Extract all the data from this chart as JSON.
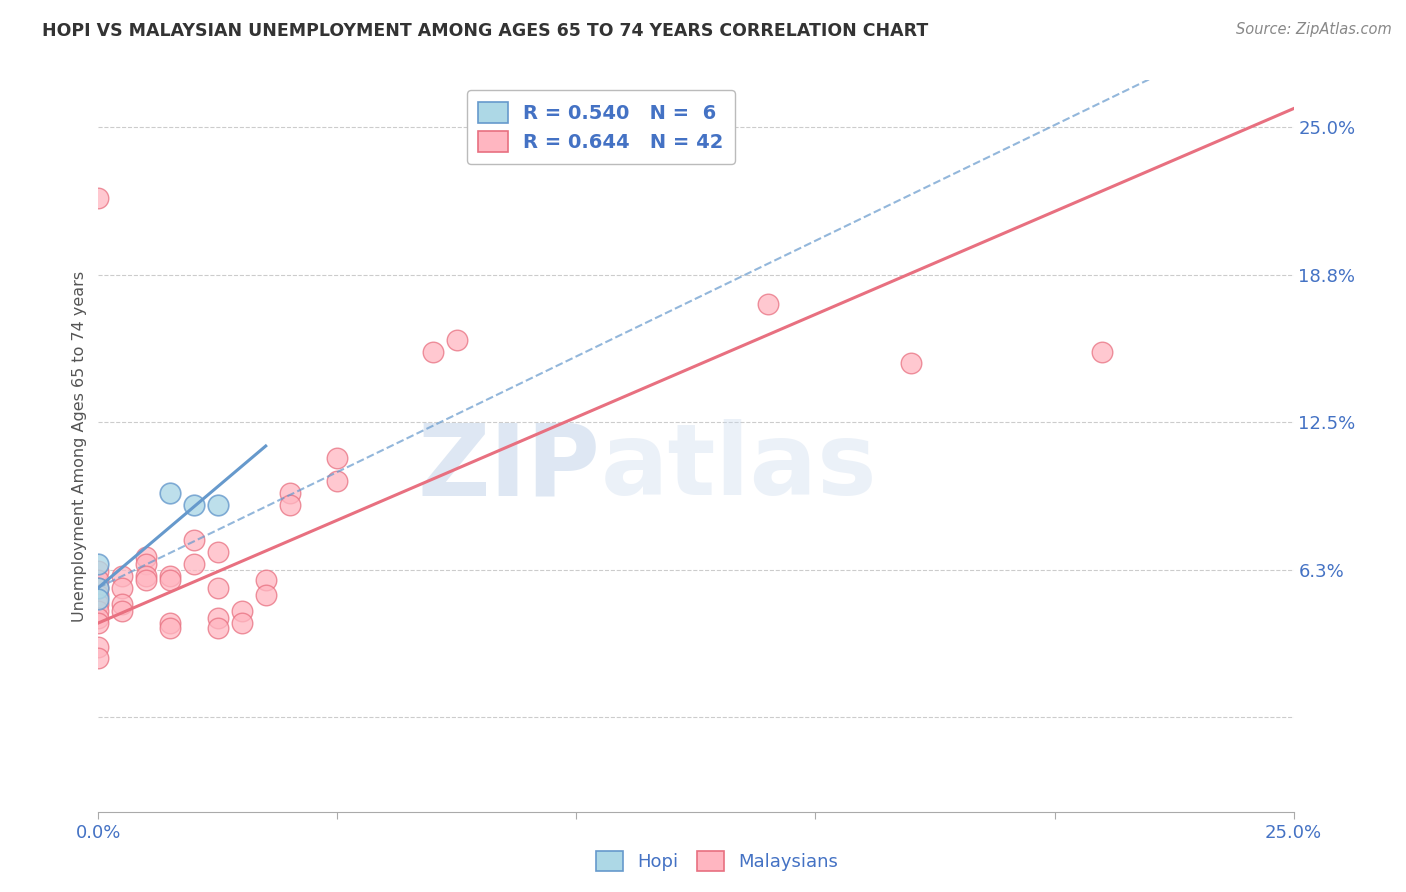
{
  "title": "HOPI VS MALAYSIAN UNEMPLOYMENT AMONG AGES 65 TO 74 YEARS CORRELATION CHART",
  "source": "Source: ZipAtlas.com",
  "ylabel": "Unemployment Among Ages 65 to 74 years",
  "xlim": [
    0.0,
    0.25
  ],
  "ylim": [
    -0.04,
    0.27
  ],
  "yticks": [
    0.0,
    0.0625,
    0.125,
    0.1875,
    0.25
  ],
  "ytick_labels": [
    "",
    "6.3%",
    "12.5%",
    "18.8%",
    "25.0%"
  ],
  "xtick_vals": [
    0.0,
    0.05,
    0.1,
    0.15,
    0.2,
    0.25
  ],
  "xtick_labels": [
    "0.0%",
    "",
    "",
    "",
    "",
    "25.0%"
  ],
  "hopi_R": 0.54,
  "hopi_N": 6,
  "malaysian_R": 0.644,
  "malaysian_N": 42,
  "hopi_color": "#ADD8E6",
  "malaysian_color": "#FFB6C1",
  "hopi_edge_color": "#6699CC",
  "malaysian_edge_color": "#E87080",
  "hopi_line_color": "#6699CC",
  "malaysian_line_color": "#E87080",
  "grid_color": "#CCCCCC",
  "axis_label_color": "#4472C4",
  "title_color": "#333333",
  "watermark_color": "#D8E8F5",
  "hopi_scatter": [
    [
      0.0,
      0.065
    ],
    [
      0.015,
      0.095
    ],
    [
      0.02,
      0.09
    ],
    [
      0.025,
      0.09
    ],
    [
      0.0,
      0.055
    ],
    [
      0.0,
      0.05
    ]
  ],
  "malaysian_scatter": [
    [
      0.0,
      0.062
    ],
    [
      0.0,
      0.058
    ],
    [
      0.0,
      0.055
    ],
    [
      0.0,
      0.052
    ],
    [
      0.0,
      0.048
    ],
    [
      0.0,
      0.045
    ],
    [
      0.0,
      0.042
    ],
    [
      0.0,
      0.04
    ],
    [
      0.0,
      0.03
    ],
    [
      0.0,
      0.025
    ],
    [
      0.005,
      0.06
    ],
    [
      0.005,
      0.055
    ],
    [
      0.005,
      0.048
    ],
    [
      0.005,
      0.045
    ],
    [
      0.01,
      0.068
    ],
    [
      0.01,
      0.065
    ],
    [
      0.01,
      0.06
    ],
    [
      0.01,
      0.058
    ],
    [
      0.015,
      0.06
    ],
    [
      0.015,
      0.058
    ],
    [
      0.015,
      0.04
    ],
    [
      0.015,
      0.038
    ],
    [
      0.02,
      0.075
    ],
    [
      0.02,
      0.065
    ],
    [
      0.025,
      0.07
    ],
    [
      0.025,
      0.055
    ],
    [
      0.025,
      0.042
    ],
    [
      0.025,
      0.038
    ],
    [
      0.03,
      0.045
    ],
    [
      0.03,
      0.04
    ],
    [
      0.035,
      0.058
    ],
    [
      0.035,
      0.052
    ],
    [
      0.04,
      0.095
    ],
    [
      0.04,
      0.09
    ],
    [
      0.05,
      0.11
    ],
    [
      0.05,
      0.1
    ],
    [
      0.07,
      0.155
    ],
    [
      0.075,
      0.16
    ],
    [
      0.0,
      0.22
    ],
    [
      0.14,
      0.175
    ],
    [
      0.17,
      0.15
    ],
    [
      0.21,
      0.155
    ]
  ],
  "hopi_trend": [
    0.0,
    0.055,
    0.035,
    0.115
  ],
  "malaysian_trend": [
    0.0,
    0.04,
    0.25,
    0.258
  ],
  "hopi_dashed_trend": [
    0.0,
    0.055,
    0.25,
    0.3
  ]
}
